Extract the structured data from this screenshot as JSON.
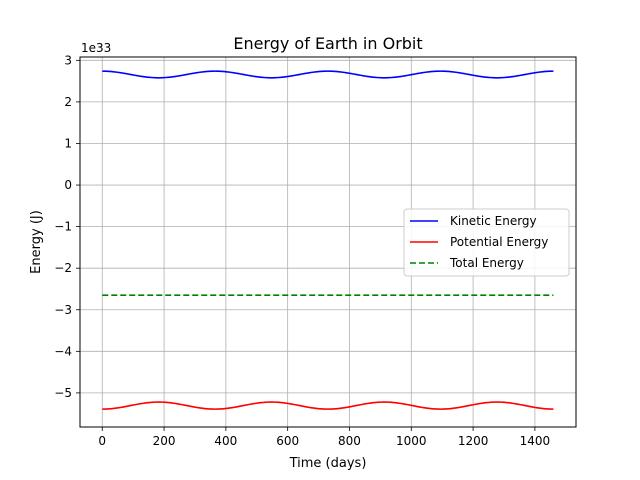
{
  "chart_data": {
    "type": "line",
    "title": "Energy of Earth in Orbit",
    "xlabel": "Time (days)",
    "ylabel": "Energy (J)",
    "y_offset_label": "1e33",
    "xlim": [
      -72,
      1533
    ],
    "ylim": [
      -5.82,
      3.08
    ],
    "xticks": [
      0,
      200,
      400,
      600,
      800,
      1000,
      1200,
      1400
    ],
    "xtick_labels": [
      "0",
      "200",
      "400",
      "600",
      "800",
      "1000",
      "1200",
      "1400"
    ],
    "yticks": [
      3,
      2,
      1,
      0,
      -1,
      -2,
      -3,
      -4,
      -5
    ],
    "ytick_labels": [
      "3",
      "2",
      "1",
      "0",
      "−1",
      "−2",
      "−3",
      "−4",
      "−5"
    ],
    "grid": true,
    "legend_position": "center-right",
    "series": [
      {
        "name": "Kinetic Energy",
        "color": "#0000ff",
        "dash": "solid",
        "x": [
          0,
          91,
          183,
          274,
          365,
          456,
          548,
          639,
          730,
          821,
          913,
          1004,
          1095,
          1186,
          1278,
          1369,
          1460
        ],
        "values": [
          2.74,
          2.66,
          2.58,
          2.66,
          2.74,
          2.66,
          2.58,
          2.66,
          2.74,
          2.66,
          2.58,
          2.66,
          2.74,
          2.66,
          2.58,
          2.66,
          2.74
        ]
      },
      {
        "name": "Potential Energy",
        "color": "#ff0000",
        "dash": "solid",
        "x": [
          0,
          91,
          183,
          274,
          365,
          456,
          548,
          639,
          730,
          821,
          913,
          1004,
          1095,
          1186,
          1278,
          1369,
          1460
        ],
        "values": [
          -5.39,
          -5.31,
          -5.22,
          -5.31,
          -5.39,
          -5.31,
          -5.22,
          -5.31,
          -5.39,
          -5.31,
          -5.22,
          -5.31,
          -5.39,
          -5.31,
          -5.22,
          -5.31,
          -5.39
        ]
      },
      {
        "name": "Total Energy",
        "color": "#008000",
        "dash": "dashed",
        "x": [
          0,
          1460
        ],
        "values": [
          -2.65,
          -2.65
        ]
      }
    ]
  }
}
